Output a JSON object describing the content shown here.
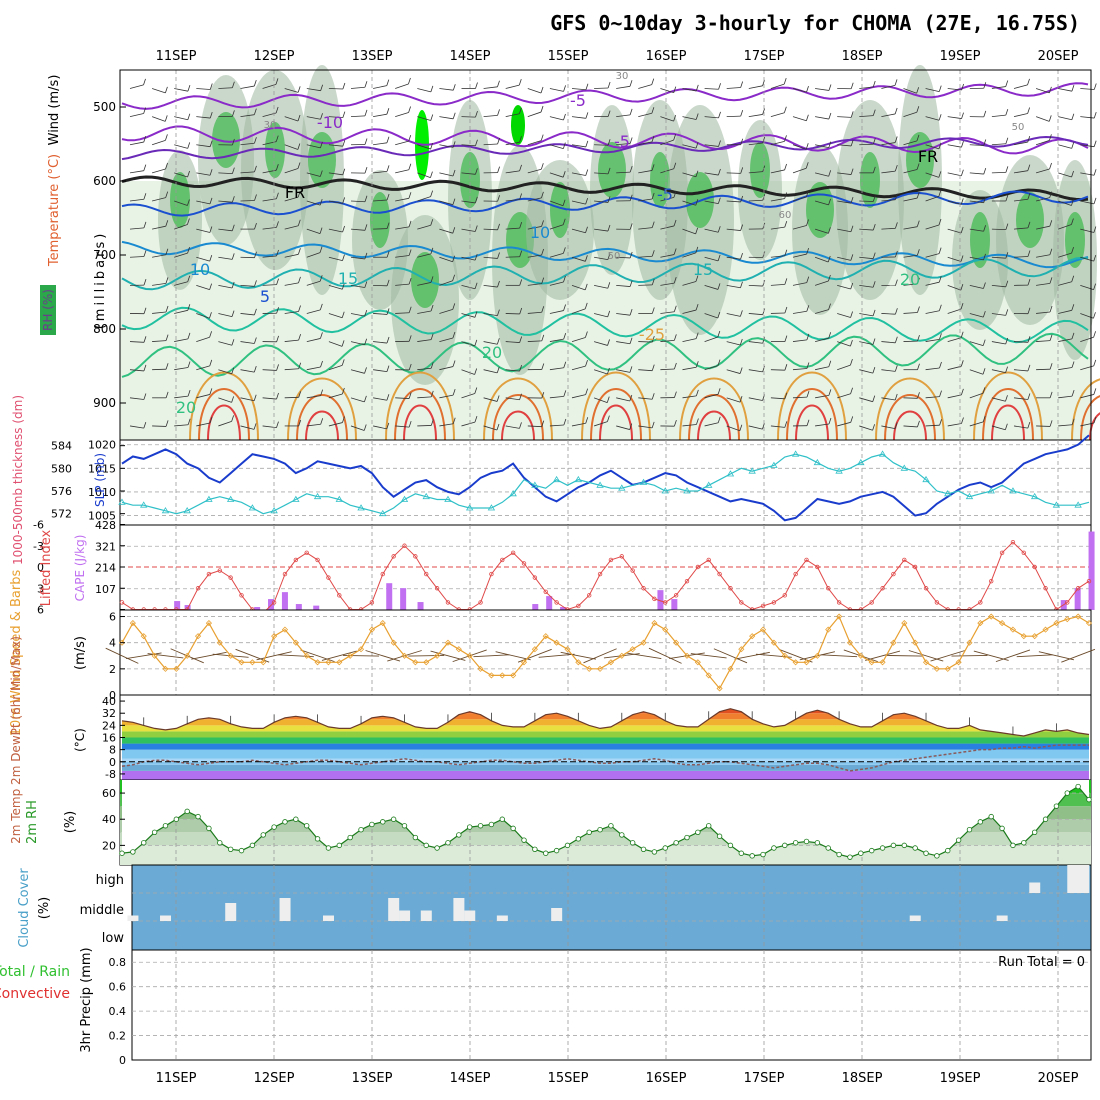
{
  "title": "GFS 0~10day 3-hourly for CHOMA (27E, 16.75S)",
  "days": [
    "11SEP",
    "12SEP",
    "13SEP",
    "14SEP",
    "15SEP",
    "16SEP",
    "17SEP",
    "18SEP",
    "19SEP",
    "20SEP"
  ],
  "colors": {
    "wind_line": "#e8a030",
    "precip_rain": "#30c030",
    "precip_conv": "#e03030",
    "rh_shade": "#2aa84a",
    "sky": "#6aaad4",
    "slp": "#1a3ccc",
    "thickness": "#30c0c8",
    "cape_bar": "#c070f0",
    "li_line": "#e04848",
    "rh2m": "#2a9a2a",
    "dewpt": "#8a5a5a"
  },
  "panels": {
    "upper": {
      "ylabel_wind": "Wind (m/s)",
      "ylabel_temp": "Temperature (°C)",
      "ylabel_rh": "RH (%)",
      "ylabel_unit": "(millibars)",
      "ticks": [
        "500",
        "600",
        "700",
        "800",
        "900"
      ],
      "contour_labels": [
        "-10",
        "-5",
        "-5",
        "-5",
        "FR",
        "FR",
        "5",
        "10",
        "10",
        "15",
        "15",
        "20",
        "20",
        "20",
        "-25",
        "30",
        "30",
        "50",
        "50",
        "60"
      ]
    },
    "slp": {
      "ylabel_thk": "1000-500mb thickness (dm)",
      "ylabel_slp": "SLP (mb)",
      "ticks_left": [
        "584",
        "580",
        "576",
        "572"
      ],
      "ticks_right": [
        "1020",
        "1015",
        "1010",
        "1005"
      ]
    },
    "cape": {
      "ylabel_li": "Lifted Index",
      "ylabel_cape": "CAPE (J/kg)",
      "ticks_left": [
        "-6",
        "-3",
        "0",
        "3",
        "6"
      ],
      "ticks_right": [
        "428",
        "321",
        "214",
        "107"
      ]
    },
    "wind10m": {
      "ylabel": "10m Wind Speed & Barbs",
      "unit": "(m/s)",
      "ticks": [
        "6",
        "4",
        "2",
        "0"
      ]
    },
    "temp2m": {
      "ylabel": "2m Temp 2m DewPt (6hr Min/Max)",
      "unit": "(°C)",
      "ticks": [
        "40",
        "32",
        "24",
        "16",
        "8",
        "0",
        "-8"
      ]
    },
    "rh2m": {
      "ylabel": "2m RH",
      "unit": "(%)",
      "ticks": [
        "60",
        "40",
        "20"
      ]
    },
    "cloud": {
      "ylabel": "Cloud Cover",
      "unit": "(%)",
      "ticks": [
        "high",
        "middle",
        "low"
      ]
    },
    "precip": {
      "ylabel_total": "Total / Rain",
      "ylabel_conv": "Convective",
      "ylabel_axis": "3hr Precip (mm)",
      "ticks": [
        "0.8",
        "0.6",
        "0.4",
        "0.2",
        "0"
      ],
      "run_total": "Run Total = 0"
    }
  },
  "chart_data": [
    {
      "type": "line",
      "title": "SLP / 1000-500mb thickness",
      "x_unit": "3-hourly steps from 11SEP",
      "series": [
        {
          "name": "SLP (mb)",
          "values": [
            1016,
            1017.5,
            1017,
            1018,
            1019,
            1018,
            1016,
            1015,
            1013,
            1012,
            1014,
            1016,
            1018,
            1017.5,
            1017,
            1016,
            1014,
            1015,
            1016.5,
            1016,
            1015.5,
            1015,
            1015.5,
            1014,
            1011,
            1009,
            1010.5,
            1012,
            1012.5,
            1011,
            1010,
            1009.5,
            1011,
            1013,
            1014,
            1014.5,
            1016,
            1013,
            1011,
            1009,
            1008,
            1009.5,
            1011,
            1012,
            1013.5,
            1014.5,
            1013,
            1011.5,
            1012,
            1013,
            1014,
            1013.5,
            1012,
            1011,
            1010,
            1009,
            1008,
            1008.5,
            1008,
            1007.5,
            1006,
            1004,
            1004.5,
            1006.5,
            1008.5,
            1008,
            1007.5,
            1008,
            1009,
            1009.5,
            1010,
            1009,
            1007,
            1005,
            1005.5,
            1007.5,
            1009,
            1010.5,
            1011.5,
            1012,
            1011,
            1012,
            1014,
            1016,
            1017,
            1018,
            1018.5,
            1019,
            1020,
            1022
          ]
        },
        {
          "name": "Thickness (dm)",
          "values": [
            574,
            573.5,
            573.5,
            573,
            572.5,
            572,
            572.5,
            573.5,
            574.5,
            575,
            574.5,
            574,
            573,
            572,
            572.5,
            573.5,
            574.5,
            575.5,
            575,
            575,
            574.5,
            573.5,
            573,
            572.5,
            572,
            573,
            574.5,
            575.5,
            575,
            574.5,
            574.5,
            573.5,
            573,
            573,
            573,
            574,
            575.5,
            578,
            577,
            576.5,
            578,
            577,
            578,
            577.5,
            577,
            576.5,
            576.5,
            577,
            577.5,
            577,
            576,
            576.5,
            576,
            576,
            577,
            578,
            579,
            580,
            579.5,
            580,
            580.5,
            582,
            582.5,
            582,
            581,
            580,
            579.5,
            580,
            581,
            582,
            582.5,
            581,
            580,
            579.5,
            578,
            576,
            575.5,
            576,
            575,
            575.5,
            576,
            577,
            576,
            575.5,
            575,
            574,
            573.5,
            573.5,
            573.5,
            574
          ]
        }
      ]
    },
    {
      "type": "bar",
      "title": "CAPE / Lifted Index",
      "series": [
        {
          "name": "CAPE (J/kg)",
          "bars": [
            [
              0.3,
              0
            ],
            [
              1,
              0
            ],
            [
              1.5,
              45
            ],
            [
              1.8,
              25
            ],
            [
              3.8,
              15
            ],
            [
              4.2,
              55
            ],
            [
              4.6,
              90
            ],
            [
              5.0,
              30
            ],
            [
              5.5,
              22
            ],
            [
              7.6,
              135
            ],
            [
              8.0,
              110
            ],
            [
              8.5,
              40
            ],
            [
              11.8,
              30
            ],
            [
              12.2,
              70
            ],
            [
              12.6,
              15
            ],
            [
              15.4,
              100
            ],
            [
              15.8,
              55
            ],
            [
              27.0,
              50
            ],
            [
              27.4,
              110
            ],
            [
              27.8,
              395
            ],
            [
              28.2,
              290
            ]
          ]
        },
        {
          "name": "Lifted Index",
          "values": [
            5,
            6,
            6,
            6,
            6,
            6,
            6,
            3,
            1,
            0.5,
            1.5,
            4,
            6,
            6.5,
            5,
            1,
            -1,
            -2,
            -1,
            1.5,
            4,
            6,
            6,
            5,
            1,
            -1.5,
            -3,
            -1.5,
            1,
            3,
            5,
            6,
            6,
            5,
            1,
            -1,
            -2,
            -0.5,
            1.5,
            3.5,
            5,
            6,
            5.5,
            4,
            1,
            -1,
            -1.5,
            0.5,
            3,
            4.5,
            5,
            4,
            2,
            0,
            -1,
            1,
            3,
            5,
            6,
            5.5,
            5,
            4,
            1,
            -1,
            0,
            3,
            5,
            6,
            6,
            5,
            3,
            1,
            -1,
            0,
            3,
            5,
            6,
            6,
            6,
            5,
            2,
            -2,
            -3.5,
            -2,
            0,
            3,
            6,
            5,
            3,
            2
          ]
        }
      ]
    },
    {
      "type": "line",
      "title": "10m Wind Speed",
      "series": [
        {
          "name": "Speed (m/s)",
          "values": [
            4,
            5.5,
            4.5,
            3,
            2,
            2,
            3,
            4.5,
            5.5,
            4,
            3,
            2.5,
            2.5,
            2.5,
            4.5,
            5,
            4,
            3,
            2.5,
            2.5,
            2.5,
            3,
            3.5,
            5,
            5.5,
            4,
            3,
            2.5,
            2.5,
            3,
            4,
            3.5,
            3,
            2,
            1.5,
            1.5,
            1.5,
            2.5,
            3.5,
            4.5,
            4,
            3.5,
            2.5,
            2,
            2,
            2.5,
            3,
            3.5,
            4,
            5.5,
            5,
            4,
            3,
            2.5,
            1.5,
            0.5,
            2,
            3.5,
            4.5,
            5,
            4,
            3,
            2.5,
            2.5,
            3,
            5,
            6,
            4,
            3,
            2.5,
            2.5,
            4,
            5.5,
            4,
            2.5,
            2,
            2,
            2.5,
            4,
            5.5,
            6,
            5.5,
            5,
            4.5,
            4.5,
            5,
            5.5,
            5.8,
            6,
            5.5
          ]
        }
      ]
    },
    {
      "type": "area",
      "title": "2m Temperature / Dew Point",
      "series": [
        {
          "name": "2m Temp (°C)",
          "values": [
            27,
            26,
            24,
            22,
            21,
            22,
            25,
            28,
            29,
            28,
            25,
            23,
            22,
            22,
            26,
            29,
            30,
            29,
            26,
            23,
            22,
            22,
            25,
            29,
            30,
            29,
            26,
            23,
            22,
            22,
            26,
            31,
            33,
            31,
            27,
            24,
            23,
            23,
            27,
            31,
            32,
            30,
            27,
            24,
            22,
            23,
            27,
            31,
            33,
            31,
            27,
            24,
            23,
            23,
            28,
            33,
            35,
            33,
            28,
            25,
            23,
            24,
            28,
            32,
            34,
            32,
            28,
            25,
            23,
            23,
            27,
            31,
            32,
            30,
            27,
            24,
            22,
            22,
            24,
            21,
            20,
            19,
            18,
            17,
            19,
            21,
            20,
            21,
            19,
            18
          ]
        },
        {
          "name": "2m DewPt (°C)",
          "values": [
            -3,
            -2,
            0,
            1,
            1,
            0,
            -1,
            -2,
            -1,
            0,
            0,
            0,
            1,
            0,
            -1,
            -2,
            -1,
            0,
            1,
            1,
            0,
            -1,
            -2,
            -1,
            0,
            1,
            2,
            1,
            0,
            0,
            -1,
            -2,
            -1,
            0,
            1,
            1,
            0,
            -1,
            -1,
            0,
            1,
            2,
            1,
            0,
            -1,
            -1,
            0,
            0,
            1,
            2,
            1,
            -1,
            -2,
            -2,
            -1,
            0,
            0,
            -1,
            -2,
            -3,
            -4,
            -3,
            -2,
            -1,
            -1,
            -2,
            -4,
            -6,
            -5,
            -4,
            -2,
            0,
            1,
            2,
            3,
            4,
            5,
            6,
            7,
            8,
            8,
            9,
            9,
            10,
            9,
            10,
            11,
            11,
            11,
            11
          ]
        }
      ]
    },
    {
      "type": "area",
      "title": "2m RH",
      "series": [
        {
          "name": "2m RH (%)",
          "values": [
            14,
            15,
            22,
            30,
            35,
            40,
            46,
            42,
            33,
            22,
            17,
            16,
            20,
            28,
            34,
            38,
            40,
            35,
            25,
            18,
            20,
            26,
            32,
            36,
            38,
            40,
            35,
            26,
            20,
            18,
            22,
            28,
            34,
            35,
            36,
            40,
            33,
            24,
            17,
            14,
            16,
            20,
            25,
            30,
            32,
            35,
            28,
            22,
            17,
            15,
            18,
            22,
            26,
            30,
            35,
            27,
            20,
            14,
            12,
            13,
            18,
            20,
            22,
            23,
            22,
            18,
            13,
            11,
            14,
            16,
            18,
            20,
            20,
            18,
            14,
            12,
            16,
            24,
            32,
            38,
            42,
            33,
            20,
            22,
            30,
            40,
            50,
            60,
            65,
            55
          ]
        }
      ]
    },
    {
      "type": "bar",
      "title": "Cloud Cover",
      "series": [
        {
          "name": "middle",
          "bars": [
            [
              0.5,
              1
            ],
            [
              3.5,
              1
            ],
            [
              9.5,
              6
            ],
            [
              14.5,
              8
            ],
            [
              18.5,
              1
            ],
            [
              24.5,
              8
            ],
            [
              25.5,
              3
            ],
            [
              27.5,
              3
            ],
            [
              30.5,
              8
            ],
            [
              31.5,
              3
            ],
            [
              34.5,
              1
            ],
            [
              39.5,
              4
            ],
            [
              72.5,
              1
            ],
            [
              80.5,
              1
            ]
          ]
        },
        {
          "name": "high",
          "bars": [
            [
              83.5,
              3
            ],
            [
              87.0,
              10
            ]
          ]
        }
      ]
    },
    {
      "type": "bar",
      "title": "3hr Precip",
      "series": [
        {
          "name": "3hr Precip (mm)",
          "values": []
        }
      ],
      "ylim": [
        0,
        0.9
      ]
    }
  ]
}
